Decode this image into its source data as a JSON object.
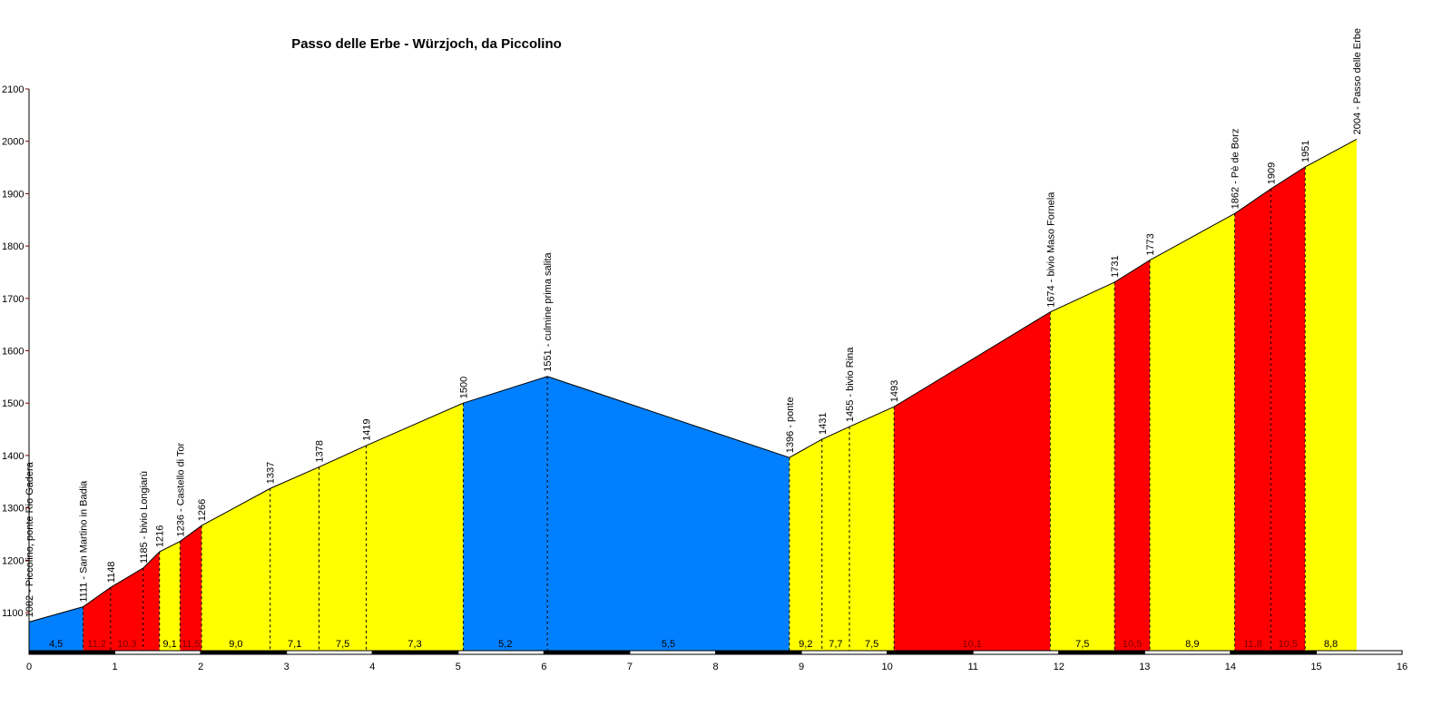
{
  "chart_data": {
    "type": "area",
    "title": "Passo delle Erbe - Würzjoch, da Piccolino",
    "xlabel": "",
    "ylabel": "",
    "xlim": [
      0,
      16
    ],
    "ylim": [
      1027,
      2100
    ],
    "x_ticks": [
      "0",
      "1",
      "2",
      "3",
      "4",
      "5",
      "6",
      "7",
      "8",
      "9",
      "10",
      "11",
      "12",
      "13",
      "14",
      "15",
      "16"
    ],
    "y_ticks": [
      "1100",
      "1200",
      "1300",
      "1400",
      "1500",
      "1600",
      "1700",
      "1800",
      "1900",
      "2000",
      "2100"
    ],
    "grid": false,
    "colors": {
      "low": "#0080ff",
      "medium": "#ffff00",
      "high": "#ff0000"
    },
    "points": [
      {
        "km": 0.0,
        "elev": 1082,
        "label": "1082 - Piccolino, ponte Rio Gadera"
      },
      {
        "km": 0.63,
        "elev": 1111,
        "label": "1111 - San Martino in Badia"
      },
      {
        "km": 0.95,
        "elev": 1148,
        "label": "1148"
      },
      {
        "km": 1.33,
        "elev": 1185,
        "label": "1185 - bivio Longiarù"
      },
      {
        "km": 1.52,
        "elev": 1216,
        "label": "1216"
      },
      {
        "km": 1.76,
        "elev": 1236,
        "label": "1236 - Castello di Tor"
      },
      {
        "km": 2.01,
        "elev": 1266,
        "label": "1266"
      },
      {
        "km": 2.81,
        "elev": 1337,
        "label": "1337"
      },
      {
        "km": 3.38,
        "elev": 1378,
        "label": "1378"
      },
      {
        "km": 3.93,
        "elev": 1419,
        "label": "1419"
      },
      {
        "km": 5.06,
        "elev": 1500,
        "label": "1500"
      },
      {
        "km": 6.04,
        "elev": 1551,
        "label": "1551 - culmine prima salita"
      },
      {
        "km": 8.86,
        "elev": 1396,
        "label": "1396 - ponte"
      },
      {
        "km": 9.24,
        "elev": 1431,
        "label": "1431"
      },
      {
        "km": 9.56,
        "elev": 1455,
        "label": "1455 - bivio Rina"
      },
      {
        "km": 10.08,
        "elev": 1493,
        "label": "1493"
      },
      {
        "km": 11.9,
        "elev": 1674,
        "label": "1674 - bivio Maso Fornela"
      },
      {
        "km": 12.65,
        "elev": 1731,
        "label": "1731"
      },
      {
        "km": 13.06,
        "elev": 1773,
        "label": "1773"
      },
      {
        "km": 14.05,
        "elev": 1862,
        "label": "1862 - Pè de Borz"
      },
      {
        "km": 14.47,
        "elev": 1909,
        "label": "1909"
      },
      {
        "km": 14.87,
        "elev": 1951,
        "label": "1951"
      },
      {
        "km": 15.47,
        "elev": 2004,
        "label": "2004 - Passo delle Erbe"
      }
    ],
    "segments": [
      {
        "gradient": "4,5",
        "level": "low"
      },
      {
        "gradient": "11,2",
        "level": "high"
      },
      {
        "gradient": "10,3",
        "level": "high"
      },
      {
        "gradient": "",
        "level": "high"
      },
      {
        "gradient": "9,1",
        "level": "medium"
      },
      {
        "gradient": "11,5",
        "level": "high"
      },
      {
        "gradient": "9,0",
        "level": "medium"
      },
      {
        "gradient": "7,1",
        "level": "medium"
      },
      {
        "gradient": "7,5",
        "level": "medium"
      },
      {
        "gradient": "7,3",
        "level": "medium"
      },
      {
        "gradient": "5,2",
        "level": "low"
      },
      {
        "gradient": "5,5",
        "level": "low"
      },
      {
        "gradient": "9,2",
        "level": "medium"
      },
      {
        "gradient": "7,7",
        "level": "medium"
      },
      {
        "gradient": "7,5",
        "level": "medium"
      },
      {
        "gradient": "10,1",
        "level": "high"
      },
      {
        "gradient": "7,5",
        "level": "medium"
      },
      {
        "gradient": "10,5",
        "level": "high"
      },
      {
        "gradient": "8,9",
        "level": "medium"
      },
      {
        "gradient": "11,8",
        "level": "high"
      },
      {
        "gradient": "10,5",
        "level": "high"
      },
      {
        "gradient": "8,8",
        "level": "medium"
      }
    ]
  }
}
